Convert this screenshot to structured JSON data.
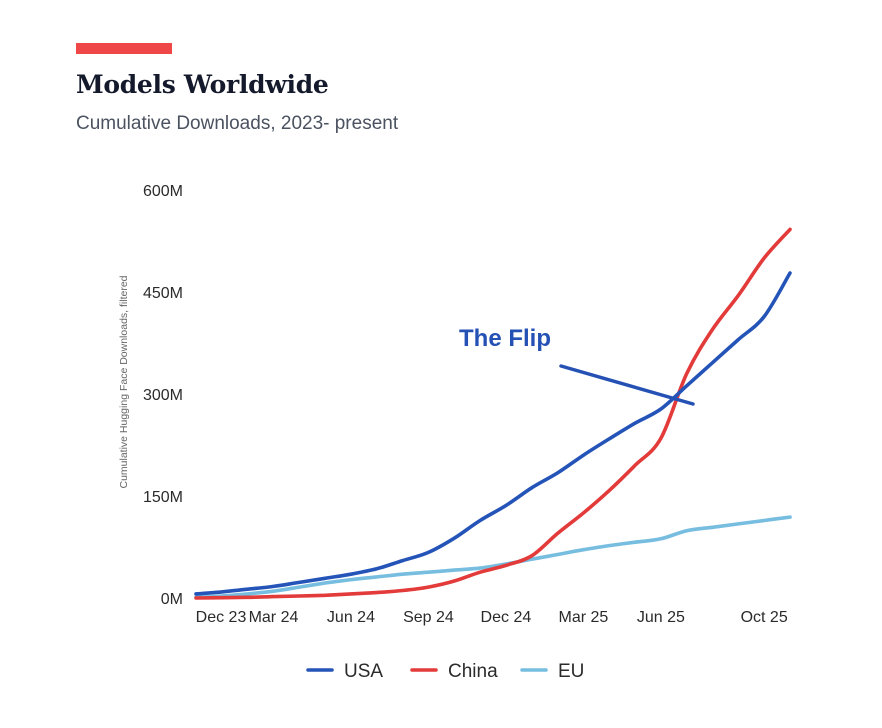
{
  "header": {
    "title": "Models Worldwide",
    "subtitle": "Cumulative Downloads, 2023- present",
    "accent_color": "#ef4747"
  },
  "annotation": {
    "label": "The Flip",
    "color": "#2551b5"
  },
  "chart_data": {
    "type": "line",
    "title": "Models Worldwide",
    "subtitle": "Cumulative Downloads, 2023- present",
    "xlabel": "",
    "ylabel": "Cumulative Hugging Face Downloads, filtered",
    "ylim": [
      0,
      600
    ],
    "y_unit": "M",
    "y_ticks": [
      0,
      150,
      300,
      450,
      600
    ],
    "y_tick_labels": [
      "0M",
      "150M",
      "300M",
      "450M",
      "600M"
    ],
    "x_tick_labels": [
      "Dec 23",
      "Mar 24",
      "Jun 24",
      "Sep 24",
      "Dec 24",
      "Mar 25",
      "Jun 25",
      "Oct 25"
    ],
    "x": [
      "Dec 23",
      "Jan 24",
      "Feb 24",
      "Mar 24",
      "Apr 24",
      "May 24",
      "Jun 24",
      "Jul 24",
      "Aug 24",
      "Sep 24",
      "Oct 24",
      "Nov 24",
      "Dec 24",
      "Jan 25",
      "Feb 25",
      "Mar 25",
      "Apr 25",
      "May 25",
      "Jun 25",
      "Jul 25",
      "Aug 25",
      "Sep 25",
      "Oct 25",
      "Nov 25"
    ],
    "grid": false,
    "legend_position": "bottom",
    "series": [
      {
        "name": "USA",
        "color": "#2454b8",
        "values": [
          6,
          9,
          13,
          17,
          23,
          29,
          35,
          43,
          55,
          67,
          88,
          114,
          136,
          162,
          184,
          210,
          234,
          257,
          278,
          312,
          346,
          380,
          414,
          478
        ]
      },
      {
        "name": "China",
        "color": "#e33a3a",
        "values": [
          0,
          0.5,
          1,
          2,
          3,
          4,
          6,
          8,
          11,
          16,
          25,
          38,
          48,
          62,
          95,
          125,
          158,
          195,
          235,
          330,
          395,
          445,
          500,
          542
        ]
      },
      {
        "name": "EU",
        "color": "#76bde0",
        "values": [
          1,
          3,
          6,
          10,
          16,
          22,
          27,
          31,
          35,
          38,
          41,
          44,
          50,
          57,
          64,
          71,
          77,
          82,
          87,
          99,
          104,
          109,
          114,
          119
        ]
      }
    ]
  }
}
